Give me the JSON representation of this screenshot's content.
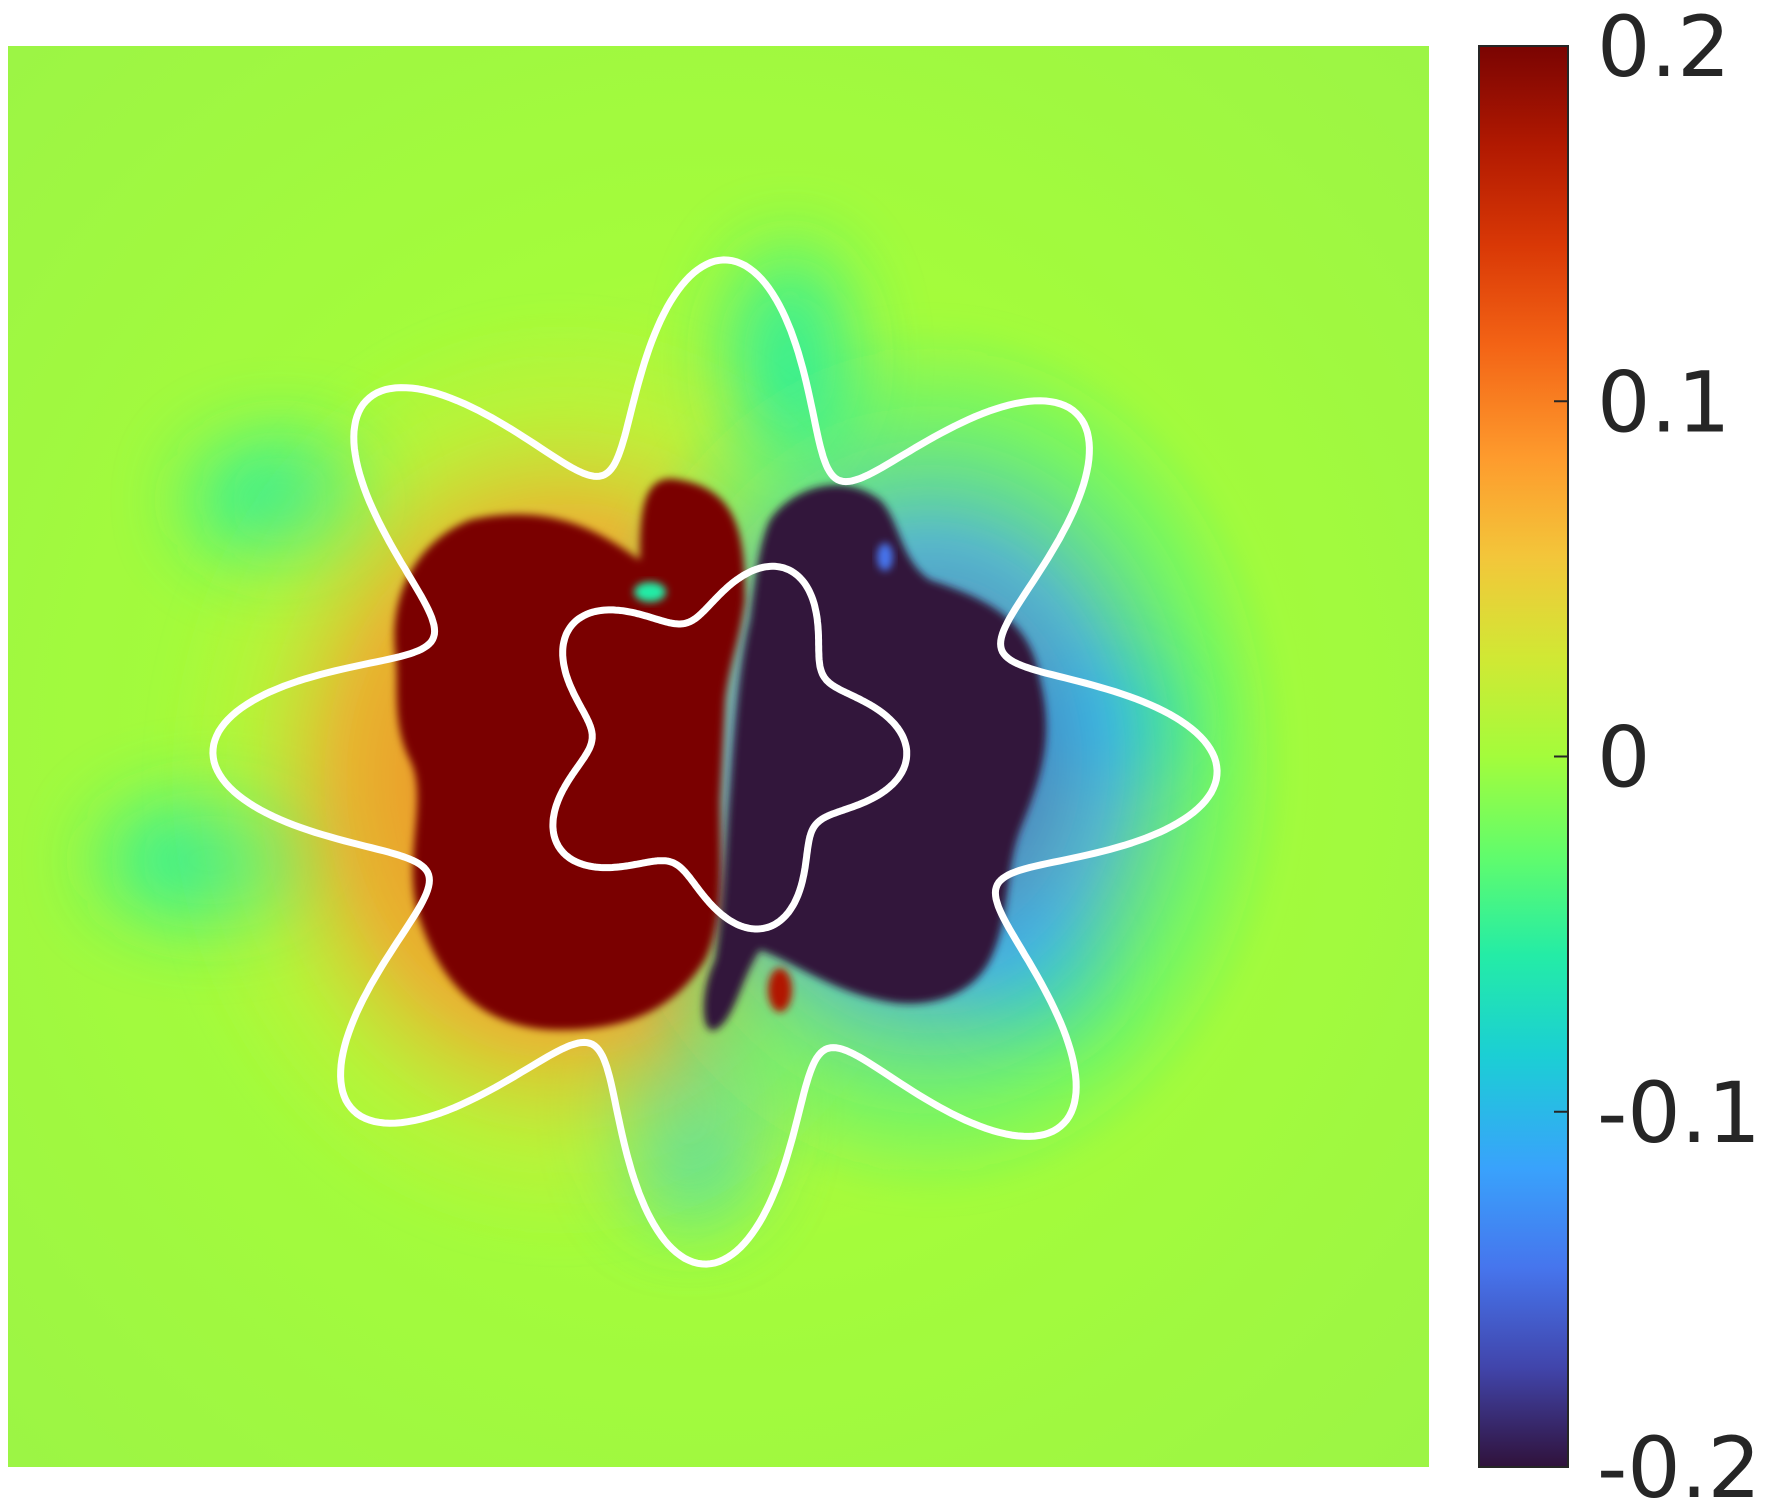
{
  "chart_data": {
    "type": "heatmap",
    "colormap": "turbo",
    "colorbar": {
      "placement": "right",
      "range": [
        -0.2,
        0.2
      ],
      "ticks": [
        {
          "value": 0.2,
          "label": "0.2"
        },
        {
          "value": 0.1,
          "label": "0.1"
        },
        {
          "value": 0,
          "label": "0"
        },
        {
          "value": -0.1,
          "label": "-0.1"
        },
        {
          "value": -0.2,
          "label": "-0.2"
        }
      ]
    },
    "field": {
      "background": 0.0,
      "description_hidden": true,
      "left_lobe_value": 0.2,
      "right_lobe_value": -0.2
    },
    "contours": [
      {
        "name": "outer-boundary",
        "color": "#ffffff",
        "lobes": 8
      },
      {
        "name": "inner-boundary",
        "color": "#ffffff",
        "lobes": 5
      }
    ],
    "grid": false,
    "axes_visible": false
  }
}
